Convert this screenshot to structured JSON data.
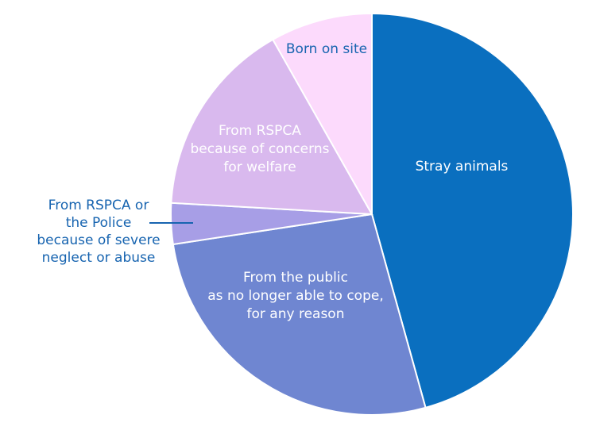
{
  "chart_data": {
    "type": "pie",
    "title": "",
    "start": "top",
    "direction": "clockwise",
    "slices": [
      {
        "label": "Stray animals",
        "value": 45.7,
        "color": "#0a6fbf",
        "label_color": "#ffffff",
        "label_lines": [
          "Stray animals"
        ]
      },
      {
        "label": "From the public as no longer able to cope, for any reason",
        "value": 26.9,
        "color": "#6f86d1",
        "label_color": "#ffffff",
        "label_lines": [
          "From the public",
          "as no longer able to cope,",
          "for any reason"
        ]
      },
      {
        "label": "From RSPCA or the Police because of severe neglect or abuse",
        "value": 3.3,
        "color": "#a79ee6",
        "label_color": "#1764b0",
        "label_lines": [
          "From RSPCA or",
          "the Police",
          "because of severe",
          "neglect or abuse"
        ]
      },
      {
        "label": "From RSPCA because of concerns for welfare",
        "value": 15.9,
        "color": "#d9b9ee",
        "label_color": "#ffffff",
        "label_lines": [
          "From RSPCA",
          "because of concerns",
          "for welfare"
        ]
      },
      {
        "label": "Born on site",
        "value": 8.2,
        "color": "#fcdafc",
        "label_color": "#1764b0",
        "label_lines": [
          "Born on site"
        ]
      }
    ]
  }
}
